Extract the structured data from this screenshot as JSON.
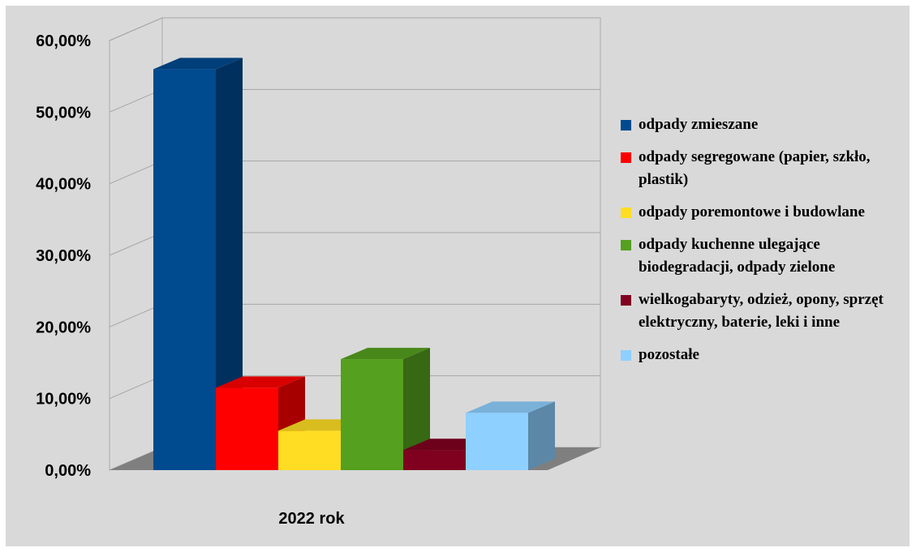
{
  "chart_data": {
    "type": "bar",
    "categories": [
      "2022 rok"
    ],
    "series": [
      {
        "name": "odpady zmieszane",
        "values": [
          56
        ],
        "color": "#004a8f"
      },
      {
        "name": "odpady segregowane (papier, szkło, plastik)",
        "values": [
          11.5
        ],
        "color": "#ff0000"
      },
      {
        "name": "odpady poremontowe i budowlane",
        "values": [
          5.5
        ],
        "color": "#ffdd22"
      },
      {
        "name": "odpady kuchenne ulegające biodegradacji, odpady zielone",
        "values": [
          15.5
        ],
        "color": "#55a01e"
      },
      {
        "name": "wielkogabaryty, odzież, opony, sprzęt elektryczny, baterie, leki i inne",
        "values": [
          2.8
        ],
        "color": "#800020"
      },
      {
        "name": "pozostałe",
        "values": [
          8
        ],
        "color": "#8ed0ff"
      }
    ],
    "yticks": [
      "0,00%",
      "10,00%",
      "20,00%",
      "30,00%",
      "40,00%",
      "50,00%",
      "60,00%"
    ],
    "ylim": [
      0,
      60
    ],
    "grid": true,
    "legend_position": "right",
    "three_d": true
  }
}
